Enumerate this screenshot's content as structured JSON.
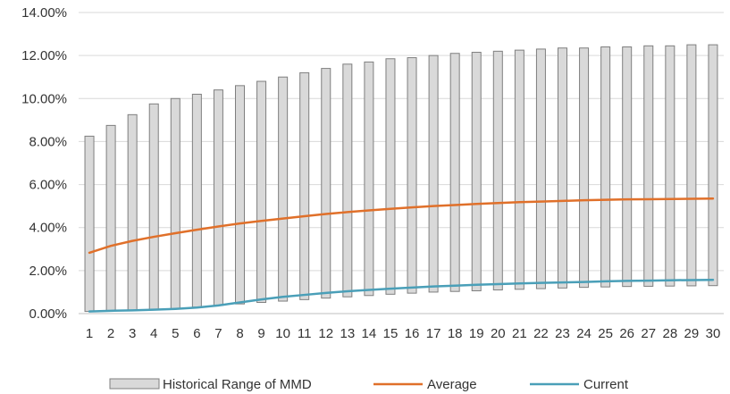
{
  "chart_data": {
    "type": "bar",
    "x": [
      1,
      2,
      3,
      4,
      5,
      6,
      7,
      8,
      9,
      10,
      11,
      12,
      13,
      14,
      15,
      16,
      17,
      18,
      19,
      20,
      21,
      22,
      23,
      24,
      25,
      26,
      27,
      28,
      29,
      30
    ],
    "x_tick_labels": [
      "1",
      "2",
      "3",
      "4",
      "5",
      "6",
      "7",
      "8",
      "9",
      "10",
      "11",
      "12",
      "13",
      "14",
      "15",
      "16",
      "17",
      "18",
      "19",
      "20",
      "21",
      "22",
      "23",
      "24",
      "25",
      "26",
      "27",
      "28",
      "29",
      "30"
    ],
    "ylim": [
      0,
      14
    ],
    "y_ticks": [
      0,
      2,
      4,
      6,
      8,
      10,
      12,
      14
    ],
    "y_tick_labels": [
      "0.00%",
      "2.00%",
      "4.00%",
      "6.00%",
      "8.00%",
      "10.00%",
      "12.00%",
      "14.00%"
    ],
    "grid": "horizontal",
    "legend_position": "bottom",
    "range_series": {
      "name": "Historical Range of MMD",
      "low": [
        0.1,
        0.12,
        0.15,
        0.18,
        0.22,
        0.3,
        0.38,
        0.45,
        0.52,
        0.58,
        0.65,
        0.72,
        0.78,
        0.84,
        0.9,
        0.95,
        1.0,
        1.03,
        1.06,
        1.1,
        1.13,
        1.16,
        1.19,
        1.22,
        1.24,
        1.26,
        1.27,
        1.28,
        1.29,
        1.3
      ],
      "high": [
        8.25,
        8.75,
        9.25,
        9.75,
        10.0,
        10.2,
        10.4,
        10.6,
        10.8,
        11.0,
        11.2,
        11.4,
        11.6,
        11.7,
        11.85,
        11.9,
        12.0,
        12.1,
        12.15,
        12.2,
        12.25,
        12.3,
        12.35,
        12.35,
        12.4,
        12.4,
        12.45,
        12.45,
        12.5,
        12.5
      ]
    },
    "series": [
      {
        "name": "Average",
        "values": [
          2.83,
          3.15,
          3.38,
          3.57,
          3.74,
          3.9,
          4.05,
          4.19,
          4.31,
          4.42,
          4.53,
          4.63,
          4.72,
          4.8,
          4.87,
          4.94,
          5.0,
          5.05,
          5.1,
          5.14,
          5.18,
          5.21,
          5.24,
          5.27,
          5.29,
          5.31,
          5.32,
          5.33,
          5.34,
          5.35
        ]
      },
      {
        "name": "Current",
        "values": [
          0.1,
          0.13,
          0.15,
          0.18,
          0.22,
          0.28,
          0.38,
          0.52,
          0.66,
          0.78,
          0.87,
          0.96,
          1.04,
          1.1,
          1.16,
          1.21,
          1.26,
          1.3,
          1.34,
          1.37,
          1.4,
          1.43,
          1.45,
          1.47,
          1.5,
          1.52,
          1.53,
          1.55,
          1.56,
          1.57
        ]
      }
    ],
    "colors": {
      "bar_fill": "#d9d9d9",
      "bar_stroke": "#7f7f7f",
      "average": "#e0702a",
      "current": "#4a9fb8",
      "grid": "#d9d9d9",
      "axis": "#bfbfbf"
    }
  }
}
